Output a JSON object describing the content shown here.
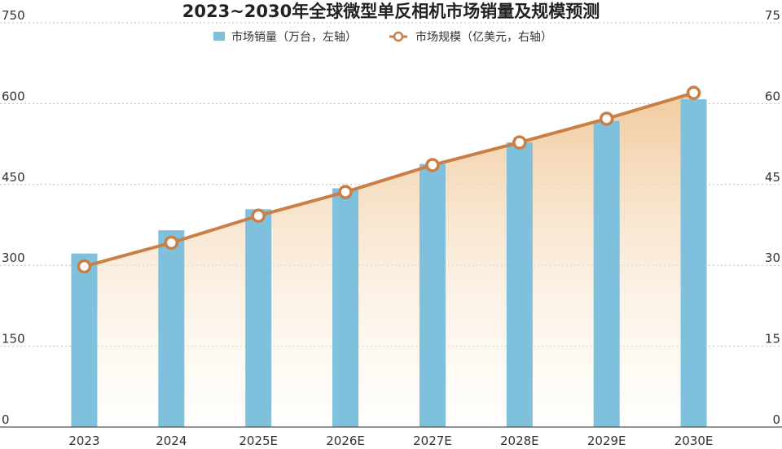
{
  "chart_data": {
    "type": "bar",
    "title": "2023~2030年全球微型单反相机市场销量及规模预测",
    "categories": [
      "2023",
      "2024",
      "2025E",
      "2026E",
      "2027E",
      "2028E",
      "2029E",
      "2030E"
    ],
    "series": [
      {
        "name": "市场销量（万台，左轴）",
        "type": "bar",
        "axis": "left",
        "values": [
          322,
          365,
          404,
          443,
          488,
          528,
          568,
          608
        ]
      },
      {
        "name": "市场规模（亿美元，右轴）",
        "type": "line",
        "axis": "right",
        "values": [
          29.8,
          34.2,
          39.2,
          43.6,
          48.6,
          52.8,
          57.2,
          62.0
        ]
      }
    ],
    "y_left": {
      "min": 0,
      "max": 750,
      "ticks": [
        "0",
        "150",
        "300",
        "450",
        "600",
        "750"
      ]
    },
    "y_right": {
      "min": 0,
      "max": 75,
      "ticks": [
        "0",
        "15",
        "30",
        "45",
        "60",
        "75"
      ]
    },
    "grid": true,
    "legend_position": "top-center",
    "colors": {
      "bar": "#7fc0dc",
      "line": "#c97f46",
      "marker_fill": "#ffffff",
      "area_top": "#f0c89a",
      "grid": "#bbbbbb",
      "axis": "#555555"
    }
  }
}
